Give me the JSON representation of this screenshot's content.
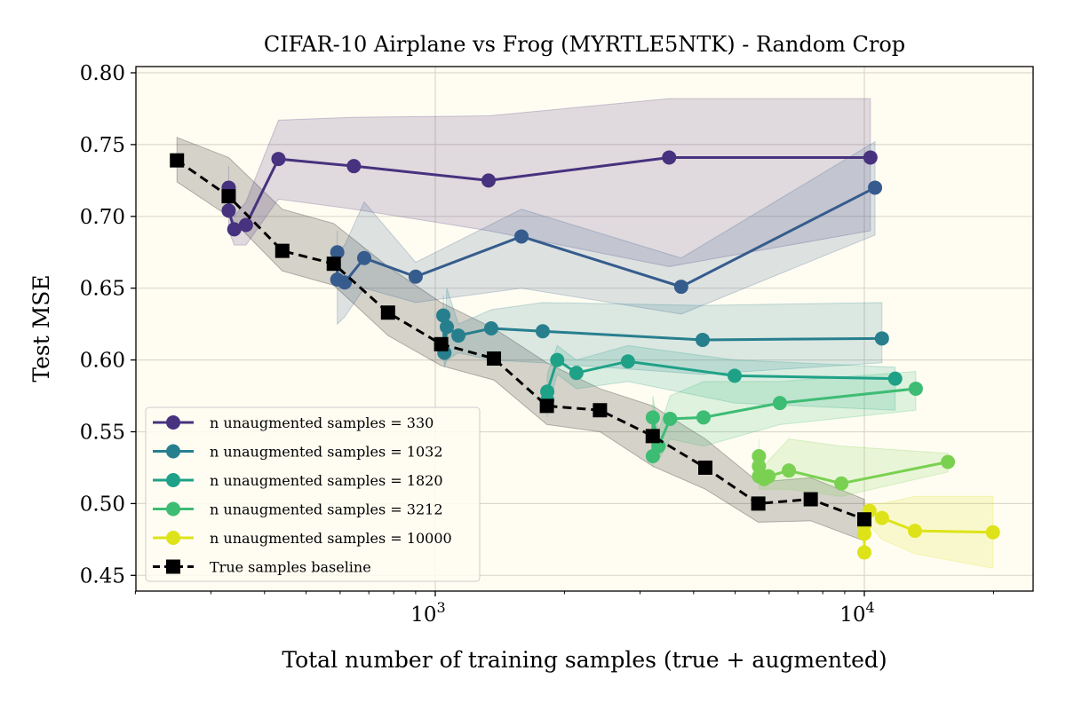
{
  "chart_data": {
    "type": "line",
    "title": "CIFAR-10 Airplane vs Frog (MYRTLE5NTK) - Random Crop",
    "xlabel": "Total number of training samples (true + augmented)",
    "ylabel": "Test MSE",
    "xscale": "log",
    "xlim": [
      200,
      24700
    ],
    "ylim": [
      0.44,
      0.804
    ],
    "xticks": [
      {
        "base": "10",
        "exp": "3",
        "value": 1000
      },
      {
        "base": "10",
        "exp": "4",
        "value": 10000
      }
    ],
    "yticks": [
      "0.45",
      "0.50",
      "0.55",
      "0.60",
      "0.65",
      "0.70",
      "0.75",
      "0.80"
    ],
    "grid": true,
    "legend_position": "lower-left",
    "series": [
      {
        "name": "n unaugmented samples = 330",
        "color": "#46327e",
        "in_legend": true,
        "x": [
          330,
          330,
          340,
          362,
          431,
          646,
          1331,
          3508,
          10330
        ],
        "y": [
          0.72,
          0.704,
          0.691,
          0.694,
          0.74,
          0.735,
          0.725,
          0.741,
          0.741
        ],
        "lower": [
          0.705,
          0.69,
          0.68,
          0.68,
          0.712,
          0.705,
          0.69,
          0.665,
          0.69
        ],
        "upper": [
          0.735,
          0.72,
          0.7,
          0.71,
          0.767,
          0.769,
          0.77,
          0.782,
          0.782
        ]
      },
      {
        "color": "#365c8d",
        "in_legend": false,
        "x": [
          591,
          591,
          615,
          683,
          900,
          1588,
          3742,
          10590
        ],
        "y": [
          0.675,
          0.656,
          0.654,
          0.671,
          0.658,
          0.686,
          0.651,
          0.72
        ],
        "lower": [
          0.66,
          0.625,
          0.63,
          0.65,
          0.64,
          0.65,
          0.632,
          0.687
        ],
        "upper": [
          0.69,
          0.675,
          0.68,
          0.71,
          0.668,
          0.705,
          0.671,
          0.752
        ]
      },
      {
        "name": "n unaugmented samples = 1032",
        "color": "#277f8e",
        "in_legend": true,
        "x": [
          1044,
          1050,
          1064,
          1132,
          1350,
          1780,
          4198,
          10990
        ],
        "y": [
          0.631,
          0.605,
          0.623,
          0.617,
          0.622,
          0.62,
          0.614,
          0.615
        ],
        "lower": [
          0.61,
          0.595,
          0.6,
          0.605,
          0.6,
          0.598,
          0.59,
          0.598
        ],
        "upper": [
          0.645,
          0.615,
          0.65,
          0.625,
          0.635,
          0.64,
          0.638,
          0.64
        ]
      },
      {
        "name": "n unaugmented samples = 1820",
        "color": "#1fa187",
        "in_legend": true,
        "x": [
          1824,
          1824,
          1924,
          2133,
          2812,
          4985,
          11800
        ],
        "y": [
          0.572,
          0.578,
          0.6,
          0.591,
          0.599,
          0.589,
          0.587
        ],
        "lower": [
          0.56,
          0.565,
          0.59,
          0.58,
          0.585,
          0.57,
          0.565
        ],
        "upper": [
          0.585,
          0.59,
          0.61,
          0.6,
          0.61,
          0.6,
          0.595
        ]
      },
      {
        "name": "n unaugmented samples = 3212",
        "color": "#3dbc74",
        "in_legend": true,
        "x": [
          3214,
          3214,
          3313,
          3526,
          4218,
          6354,
          13180
        ],
        "y": [
          0.533,
          0.56,
          0.54,
          0.559,
          0.56,
          0.57,
          0.58
        ],
        "lower": [
          0.525,
          0.545,
          0.53,
          0.545,
          0.54,
          0.555,
          0.565
        ],
        "upper": [
          0.545,
          0.575,
          0.55,
          0.575,
          0.585,
          0.585,
          0.592
        ]
      },
      {
        "color": "#7ad151",
        "in_legend": false,
        "x": [
          5680,
          5680,
          5680,
          5840,
          5980,
          6670,
          8840,
          15660
        ],
        "y": [
          0.533,
          0.526,
          0.519,
          0.517,
          0.519,
          0.523,
          0.514,
          0.529
        ],
        "lower": [
          0.525,
          0.515,
          0.51,
          0.51,
          0.51,
          0.51,
          0.505,
          0.522
        ],
        "upper": [
          0.545,
          0.535,
          0.528,
          0.525,
          0.53,
          0.545,
          0.54,
          0.535
        ]
      },
      {
        "name": "n unaugmented samples = 10000",
        "color": "#dde318",
        "in_legend": true,
        "x": [
          10000,
          10000,
          10000,
          10280,
          10990,
          13120,
          19940
        ],
        "y": [
          0.466,
          0.479,
          0.485,
          0.495,
          0.49,
          0.481,
          0.48
        ],
        "lower": [
          0.46,
          0.47,
          0.475,
          0.485,
          0.475,
          0.465,
          0.455
        ],
        "upper": [
          0.47,
          0.49,
          0.495,
          0.5,
          0.5,
          0.505,
          0.505
        ]
      }
    ],
    "baseline": {
      "name": "True samples baseline",
      "color": "#000000",
      "marker": "square",
      "style": "dashed",
      "x": [
        250,
        330,
        440,
        580,
        776,
        1032,
        1370,
        1820,
        2420,
        3212,
        4260,
        5660,
        7500,
        10000
      ],
      "y": [
        0.739,
        0.714,
        0.676,
        0.667,
        0.633,
        0.611,
        0.601,
        0.568,
        0.565,
        0.547,
        0.525,
        0.5,
        0.503,
        0.489
      ],
      "lower": [
        0.724,
        0.7,
        0.662,
        0.652,
        0.617,
        0.596,
        0.586,
        0.555,
        0.55,
        0.526,
        0.51,
        0.487,
        0.488,
        0.474
      ],
      "upper": [
        0.755,
        0.741,
        0.705,
        0.695,
        0.665,
        0.64,
        0.622,
        0.598,
        0.58,
        0.568,
        0.545,
        0.515,
        0.518,
        0.503
      ]
    }
  }
}
